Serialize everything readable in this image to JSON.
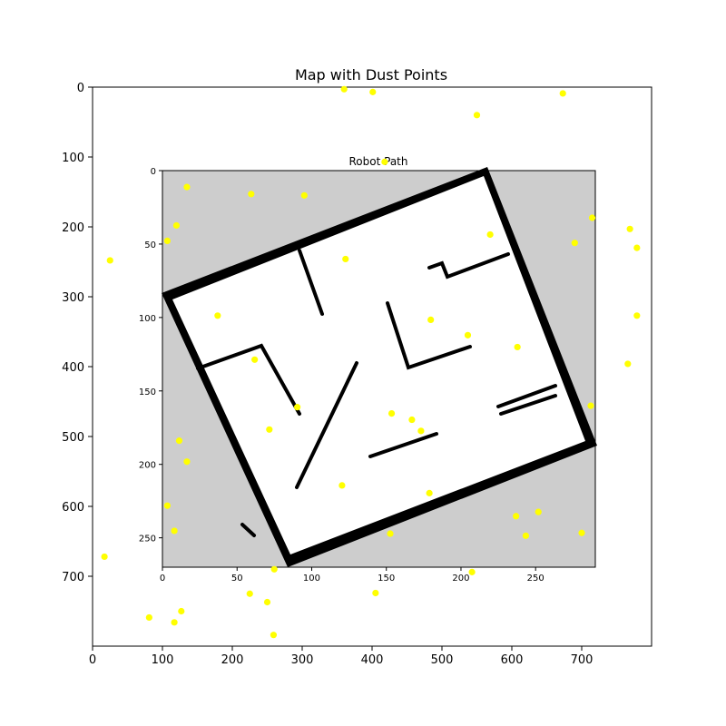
{
  "chart_data": {
    "type": "scatter",
    "title": "Map with Dust Points",
    "xlim": [
      0,
      800
    ],
    "ylim": [
      800,
      0
    ],
    "xticks": [
      0,
      100,
      200,
      300,
      400,
      500,
      600,
      700
    ],
    "yticks": [
      0,
      100,
      200,
      300,
      400,
      500,
      600,
      700
    ],
    "grid": false,
    "dust_color": "#ffff00",
    "dust_points": [
      [
        360,
        3
      ],
      [
        401,
        7
      ],
      [
        550,
        40
      ],
      [
        673,
        9
      ],
      [
        418,
        107
      ],
      [
        135,
        143
      ],
      [
        227,
        153
      ],
      [
        303,
        155
      ],
      [
        120,
        198
      ],
      [
        107,
        220
      ],
      [
        25,
        248
      ],
      [
        362,
        246
      ],
      [
        569,
        211
      ],
      [
        690,
        223
      ],
      [
        715,
        187
      ],
      [
        769,
        203
      ],
      [
        779,
        230
      ],
      [
        779,
        327
      ],
      [
        179,
        327
      ],
      [
        484,
        333
      ],
      [
        537,
        355
      ],
      [
        608,
        372
      ],
      [
        766,
        396
      ],
      [
        232,
        390
      ],
      [
        293,
        458
      ],
      [
        253,
        490
      ],
      [
        428,
        467
      ],
      [
        457,
        476
      ],
      [
        713,
        456
      ],
      [
        124,
        506
      ],
      [
        135,
        536
      ],
      [
        470,
        492
      ],
      [
        357,
        570
      ],
      [
        482,
        581
      ],
      [
        107,
        599
      ],
      [
        117,
        635
      ],
      [
        606,
        614
      ],
      [
        638,
        608
      ],
      [
        620,
        642
      ],
      [
        700,
        638
      ],
      [
        426,
        639
      ],
      [
        17,
        672
      ],
      [
        260,
        690
      ],
      [
        543,
        694
      ],
      [
        225,
        725
      ],
      [
        250,
        737
      ],
      [
        405,
        724
      ],
      [
        81,
        759
      ],
      [
        127,
        750
      ],
      [
        117,
        766
      ],
      [
        259,
        784
      ]
    ],
    "inset": {
      "title": "Robot Path",
      "xlim": [
        0,
        290
      ],
      "ylim": [
        270,
        0
      ],
      "xticks": [
        0,
        50,
        100,
        150,
        200,
        250
      ],
      "yticks": [
        0,
        50,
        100,
        150,
        200,
        250
      ],
      "background_color": "#cdcdcd",
      "floor_color": "#ffffff",
      "wall_color": "#000000"
    }
  }
}
